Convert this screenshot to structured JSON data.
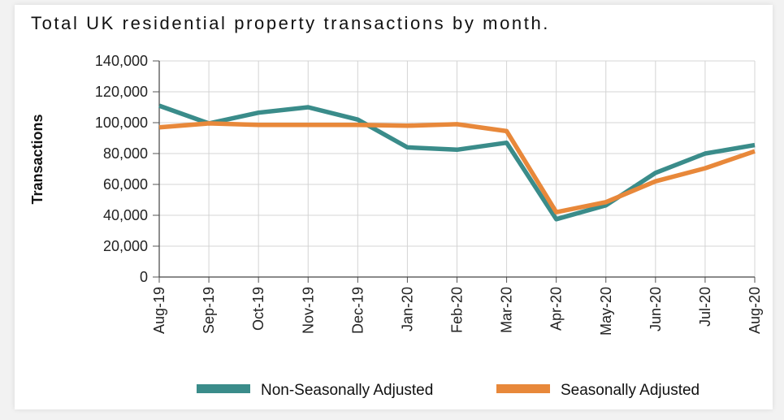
{
  "chart_data": {
    "type": "line",
    "title": "Total UK residential property transactions by month.",
    "xlabel": "",
    "ylabel": "Transactions",
    "categories": [
      "Aug-19",
      "Sep-19",
      "Oct-19",
      "Nov-19",
      "Dec-19",
      "Jan-20",
      "Feb-20",
      "Mar-20",
      "Apr-20",
      "May-20",
      "Jun-20",
      "Jul-20",
      "Aug-20"
    ],
    "ylim": [
      0,
      140000
    ],
    "yticks": [
      0,
      20000,
      40000,
      60000,
      80000,
      100000,
      120000,
      140000
    ],
    "ytick_labels": [
      "0",
      "20,000",
      "40,000",
      "60,000",
      "80,000",
      "100,000",
      "120,000",
      "140,000"
    ],
    "grid": true,
    "legend_position": "bottom",
    "series": [
      {
        "name": "Non-Seasonally Adjusted",
        "color": "#3a8c8a",
        "values": [
          111000,
          99500,
          106500,
          110000,
          102000,
          84000,
          82500,
          87000,
          37500,
          46500,
          67500,
          80000,
          85500
        ]
      },
      {
        "name": "Seasonally Adjusted",
        "color": "#e8883a",
        "values": [
          97000,
          99500,
          98500,
          98500,
          98500,
          98000,
          99000,
          94500,
          42000,
          48500,
          62000,
          70500,
          81500
        ]
      }
    ]
  }
}
